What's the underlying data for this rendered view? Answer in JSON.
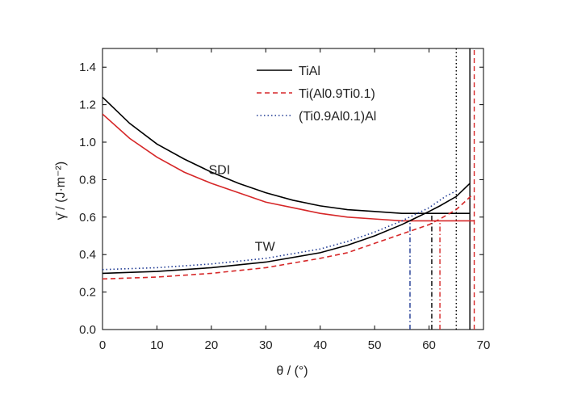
{
  "chart_data": {
    "type": "line",
    "xlabel": "θ / (°)",
    "ylabel": "γ̄ / (J·m⁻²)",
    "xlim": [
      0,
      70
    ],
    "ylim": [
      0.0,
      1.5
    ],
    "xticks": [
      0,
      10,
      20,
      30,
      40,
      50,
      60,
      70
    ],
    "yticks": [
      0.0,
      0.2,
      0.4,
      0.6,
      0.8,
      1.0,
      1.2,
      1.4
    ],
    "xtick_labels": [
      "0",
      "10",
      "20",
      "30",
      "40",
      "50",
      "60",
      "70"
    ],
    "ytick_labels": [
      "0.0",
      "0.2",
      "0.4",
      "0.6",
      "0.8",
      "1.0",
      "1.2",
      "1.4"
    ],
    "grid": false,
    "legend_position": "top-right",
    "legend": [
      {
        "label": "TiAl",
        "color": "#000000",
        "dash": "solid"
      },
      {
        "label": "Ti(Al0.9Ti0.1)",
        "color": "#d62728",
        "dash": "dashed"
      },
      {
        "label": "(Ti0.9Al0.1)Al",
        "color": "#1f3a93",
        "dash": "dotted"
      }
    ],
    "annotations": [
      {
        "text": "SDI",
        "x": 19.5,
        "y": 0.83
      },
      {
        "text": "TW",
        "x": 28.0,
        "y": 0.42
      }
    ],
    "series": [
      {
        "name": "SDI – TiAl",
        "color": "#000000",
        "dash": "solid",
        "x": [
          0,
          5,
          10,
          15,
          20,
          25,
          30,
          35,
          40,
          45,
          50,
          55,
          60,
          65,
          67.5
        ],
        "y": [
          1.24,
          1.1,
          0.99,
          0.91,
          0.84,
          0.78,
          0.73,
          0.69,
          0.66,
          0.64,
          0.63,
          0.62,
          0.62,
          0.62,
          0.62
        ]
      },
      {
        "name": "SDI – Ti(Al0.9Ti0.1)",
        "color": "#d62728",
        "dash": "solid",
        "x": [
          0,
          5,
          10,
          15,
          20,
          25,
          30,
          35,
          40,
          45,
          50,
          55,
          60,
          65,
          68.3
        ],
        "y": [
          1.15,
          1.02,
          0.92,
          0.84,
          0.78,
          0.73,
          0.68,
          0.65,
          0.62,
          0.6,
          0.59,
          0.58,
          0.58,
          0.58,
          0.58
        ]
      },
      {
        "name": "TW – TiAl",
        "color": "#000000",
        "dash": "solid",
        "x": [
          0,
          10,
          20,
          30,
          40,
          45,
          50,
          55,
          60,
          62,
          65,
          67.5
        ],
        "y": [
          0.3,
          0.31,
          0.33,
          0.36,
          0.41,
          0.45,
          0.5,
          0.56,
          0.63,
          0.66,
          0.71,
          0.78
        ]
      },
      {
        "name": "TW – Ti(Al0.9Ti0.1)",
        "color": "#d62728",
        "dash": "dashed",
        "x": [
          0,
          10,
          20,
          30,
          40,
          45,
          50,
          55,
          60,
          62,
          65,
          68
        ],
        "y": [
          0.27,
          0.28,
          0.3,
          0.33,
          0.38,
          0.41,
          0.46,
          0.51,
          0.56,
          0.59,
          0.64,
          0.72
        ]
      },
      {
        "name": "TW – (Ti0.9Al0.1)Al",
        "color": "#1f3a93",
        "dash": "dotted",
        "x": [
          0,
          10,
          20,
          30,
          40,
          45,
          50,
          55,
          60,
          63,
          65
        ],
        "y": [
          0.32,
          0.33,
          0.35,
          0.38,
          0.43,
          0.47,
          0.52,
          0.58,
          0.65,
          0.71,
          0.74
        ]
      }
    ],
    "vertical_lines": [
      {
        "x": 56.5,
        "y_top": 0.57,
        "color": "#1f3a93",
        "dash": "dashdot"
      },
      {
        "x": 60.5,
        "y_top": 0.62,
        "color": "#000000",
        "dash": "dashdot"
      },
      {
        "x": 62.0,
        "y_top": 0.58,
        "color": "#d62728",
        "dash": "dashdot"
      },
      {
        "x": 65.0,
        "y_top": 1.5,
        "color": "#000000",
        "dash": "dotted"
      },
      {
        "x": 67.5,
        "y_top": 1.5,
        "color": "#000000",
        "dash": "solid"
      },
      {
        "x": 68.3,
        "y_top": 1.5,
        "color": "#d62728",
        "dash": "dashed"
      }
    ]
  }
}
